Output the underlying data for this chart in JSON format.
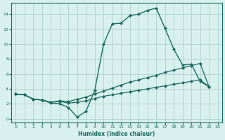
{
  "xlabel": "Humidex (Indice chaleur)",
  "bg_color": "#d8f0ee",
  "line_color": "#1a6b60",
  "grid_color": "#a8ccc8",
  "xlim": [
    -0.5,
    23.5
  ],
  "ylim": [
    -0.5,
    15.5
  ],
  "yticks": [
    0,
    2,
    4,
    6,
    8,
    10,
    12,
    14
  ],
  "xticks": [
    0,
    1,
    2,
    3,
    4,
    5,
    6,
    7,
    8,
    9,
    10,
    11,
    12,
    13,
    14,
    15,
    16,
    17,
    18,
    19,
    20,
    21,
    22,
    23
  ],
  "line1_x": [
    0,
    1,
    2,
    3,
    4,
    5,
    6,
    7,
    8,
    9,
    10,
    11,
    12,
    13,
    14,
    15,
    16,
    17,
    18,
    19,
    20,
    21,
    22
  ],
  "line1_y": [
    3.3,
    3.2,
    2.6,
    2.5,
    2.1,
    2.0,
    1.5,
    0.2,
    1.0,
    3.8,
    10.0,
    12.7,
    12.8,
    13.8,
    14.0,
    14.5,
    14.8,
    12.1,
    9.3,
    7.2,
    7.3,
    5.0,
    4.3
  ],
  "line2_x": [
    0,
    1,
    2,
    3,
    4,
    5,
    6,
    7,
    8,
    9,
    10,
    11,
    12,
    13,
    14,
    15,
    16,
    17,
    18,
    19,
    20,
    21,
    22
  ],
  "line2_y": [
    3.3,
    3.2,
    2.6,
    2.5,
    2.2,
    2.4,
    2.3,
    2.6,
    2.9,
    3.3,
    3.7,
    4.1,
    4.5,
    4.9,
    5.2,
    5.5,
    5.8,
    6.2,
    6.5,
    6.8,
    7.1,
    7.4,
    4.3
  ],
  "line3_x": [
    0,
    1,
    2,
    3,
    4,
    5,
    6,
    7,
    8,
    9,
    10,
    11,
    12,
    13,
    14,
    15,
    16,
    17,
    18,
    19,
    20,
    21,
    22
  ],
  "line3_y": [
    3.3,
    3.2,
    2.6,
    2.5,
    2.2,
    2.3,
    2.1,
    2.2,
    2.4,
    2.7,
    3.0,
    3.2,
    3.4,
    3.6,
    3.8,
    4.0,
    4.2,
    4.4,
    4.6,
    4.8,
    5.0,
    5.2,
    4.3
  ]
}
